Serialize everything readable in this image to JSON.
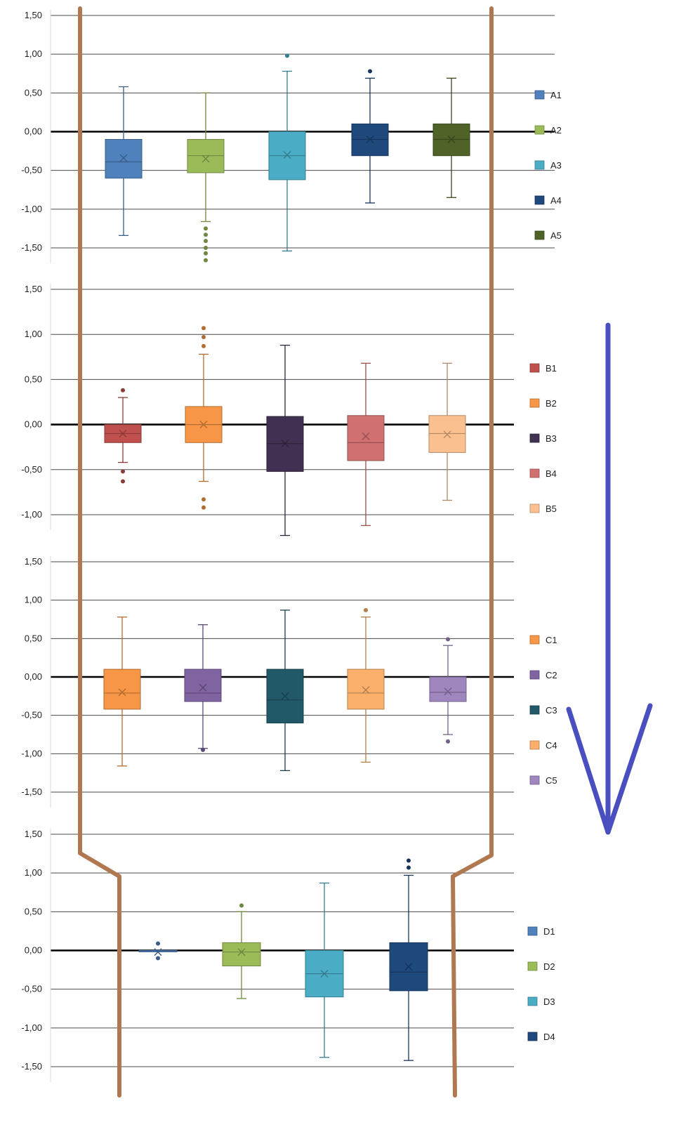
{
  "chart_data": [
    {
      "type": "box",
      "yticks": [
        "1,50",
        "1,00",
        "0,50",
        "0,00",
        "-0,50",
        "-1,00",
        "-1,50"
      ],
      "ylim": [
        -1.6,
        1.5
      ],
      "grid": true,
      "legend_position": "right",
      "series": [
        {
          "name": "A1",
          "color": "#4f81bd",
          "min": -1.34,
          "q1": -0.6,
          "median": -0.39,
          "q3": -0.1,
          "max": 0.58,
          "mean": -0.34,
          "outliers": []
        },
        {
          "name": "A2",
          "color": "#9bbb59",
          "min": -1.16,
          "q1": -0.53,
          "median": -0.31,
          "q3": -0.1,
          "max": 0.5,
          "mean": -0.35,
          "outliers": [
            -1.25,
            -1.33,
            -1.41,
            -1.5,
            -1.57,
            -1.66
          ]
        },
        {
          "name": "A3",
          "color": "#4bacc6",
          "min": -1.54,
          "q1": -0.62,
          "median": -0.31,
          "q3": 0.0,
          "max": 0.78,
          "mean": -0.3,
          "outliers": [
            0.98
          ]
        },
        {
          "name": "A4",
          "color": "#1f497d",
          "min": -0.92,
          "q1": -0.31,
          "median": -0.1,
          "q3": 0.1,
          "max": 0.69,
          "mean": -0.1,
          "outliers": [
            0.78
          ]
        },
        {
          "name": "A5",
          "color": "#4f6228",
          "min": -0.85,
          "q1": -0.31,
          "median": -0.1,
          "q3": 0.1,
          "max": 0.69,
          "mean": -0.1,
          "outliers": []
        }
      ]
    },
    {
      "type": "box",
      "yticks": [
        "1,50",
        "1,00",
        "0,50",
        "0,00",
        "-0,50",
        "-1,00"
      ],
      "ylim": [
        -1.25,
        1.5
      ],
      "grid": true,
      "legend_position": "right",
      "series": [
        {
          "name": "B1",
          "color": "#c0504d",
          "min": -0.42,
          "q1": -0.2,
          "median": -0.1,
          "q3": 0.0,
          "max": 0.3,
          "mean": -0.1,
          "outliers": [
            0.38,
            -0.52,
            -0.63
          ]
        },
        {
          "name": "B2",
          "color": "#f79646",
          "min": -0.63,
          "q1": -0.2,
          "median": 0.0,
          "q3": 0.2,
          "max": 0.78,
          "mean": 0.0,
          "outliers": [
            1.07,
            0.97,
            0.87,
            -0.83,
            -0.92
          ]
        },
        {
          "name": "B3",
          "color": "#403152",
          "min": -1.23,
          "q1": -0.52,
          "median": -0.21,
          "q3": 0.09,
          "max": 0.88,
          "mean": -0.21,
          "outliers": []
        },
        {
          "name": "B4",
          "color": "#d07070",
          "min": -1.12,
          "q1": -0.4,
          "median": -0.2,
          "q3": 0.1,
          "max": 0.68,
          "mean": -0.13,
          "outliers": []
        },
        {
          "name": "B5",
          "color": "#fac08f",
          "min": -0.84,
          "q1": -0.31,
          "median": -0.1,
          "q3": 0.1,
          "max": 0.68,
          "mean": -0.11,
          "outliers": []
        }
      ]
    },
    {
      "type": "box",
      "yticks": [
        "1,50",
        "1,00",
        "0,50",
        "0,00",
        "-0,50",
        "-1,00",
        "-1,50"
      ],
      "ylim": [
        -1.6,
        1.5
      ],
      "grid": true,
      "legend_position": "right",
      "series": [
        {
          "name": "C1",
          "color": "#f79646",
          "min": -1.16,
          "q1": -0.42,
          "median": -0.21,
          "q3": 0.1,
          "max": 0.78,
          "mean": -0.2,
          "outliers": []
        },
        {
          "name": "C2",
          "color": "#8064a2",
          "min": -0.93,
          "q1": -0.32,
          "median": -0.21,
          "q3": 0.1,
          "max": 0.68,
          "mean": -0.14,
          "outliers": [
            -0.95
          ]
        },
        {
          "name": "C3",
          "color": "#215968",
          "min": -1.22,
          "q1": -0.6,
          "median": -0.3,
          "q3": 0.1,
          "max": 0.87,
          "mean": -0.25,
          "outliers": []
        },
        {
          "name": "C4",
          "color": "#fab06a",
          "min": -1.11,
          "q1": -0.42,
          "median": -0.21,
          "q3": 0.1,
          "max": 0.78,
          "mean": -0.17,
          "outliers": [
            0.87
          ]
        },
        {
          "name": "C5",
          "color": "#9f86be",
          "min": -0.75,
          "q1": -0.32,
          "median": -0.2,
          "q3": 0.0,
          "max": 0.41,
          "mean": -0.19,
          "outliers": [
            0.49,
            -0.84
          ]
        }
      ]
    },
    {
      "type": "box",
      "yticks": [
        "1,50",
        "1,00",
        "0,50",
        "0,00",
        "-0,50",
        "-1,00",
        "-1,50"
      ],
      "ylim": [
        -1.6,
        1.5
      ],
      "grid": true,
      "legend_position": "right",
      "series": [
        {
          "name": "D1",
          "color": "#4f81bd",
          "min": 0.0,
          "q1": 0.0,
          "median": 0.0,
          "q3": 0.0,
          "max": 0.0,
          "mean": -0.02,
          "outliers": [
            0.09,
            -0.1
          ]
        },
        {
          "name": "D2",
          "color": "#9bbb59",
          "min": -0.62,
          "q1": -0.2,
          "median": -0.02,
          "q3": 0.1,
          "max": 0.5,
          "mean": -0.02,
          "outliers": [
            0.58
          ]
        },
        {
          "name": "D3",
          "color": "#4bacc6",
          "min": -1.38,
          "q1": -0.6,
          "median": -0.3,
          "q3": 0.0,
          "max": 0.87,
          "mean": -0.3,
          "outliers": []
        },
        {
          "name": "D4",
          "color": "#1f497d",
          "min": -1.42,
          "q1": -0.52,
          "median": -0.28,
          "q3": 0.1,
          "max": 0.97,
          "mean": -0.21,
          "outliers": [
            1.16,
            1.07
          ]
        }
      ]
    }
  ]
}
